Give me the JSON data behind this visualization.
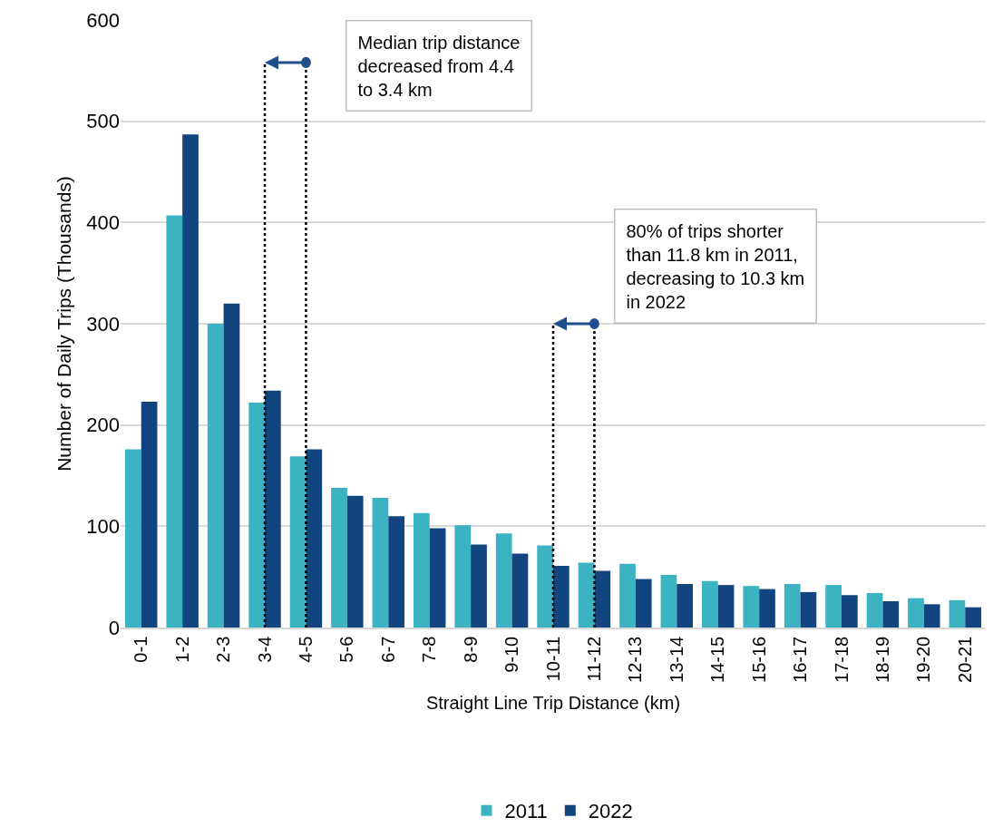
{
  "chart_data": {
    "type": "bar",
    "xlabel": "Straight Line Trip Distance (km)",
    "ylabel": "Number of Daily Trips (Thousands)",
    "categories": [
      "0-1",
      "1-2",
      "2-3",
      "3-4",
      "4-5",
      "5-6",
      "6-7",
      "7-8",
      "8-9",
      "9-10",
      "10-11",
      "11-12",
      "12-13",
      "13-14",
      "14-15",
      "15-16",
      "16-17",
      "17-18",
      "18-19",
      "19-20",
      "20-21"
    ],
    "series": [
      {
        "name": "2011",
        "color": "#3bb3c3",
        "values": [
          176,
          407,
          300,
          222,
          169,
          138,
          128,
          113,
          101,
          93,
          81,
          64,
          63,
          52,
          46,
          41,
          43,
          42,
          34,
          29,
          27
        ]
      },
      {
        "name": "2022",
        "color": "#124580",
        "values": [
          223,
          487,
          320,
          234,
          176,
          130,
          110,
          98,
          82,
          73,
          61,
          56,
          48,
          43,
          42,
          38,
          35,
          32,
          26,
          23,
          20
        ]
      }
    ],
    "ylim": [
      0,
      600
    ],
    "yticks": [
      0,
      100,
      200,
      300,
      400,
      500,
      600
    ],
    "grid": "y",
    "legend": "bottom",
    "ref_lines": [
      {
        "axis": "x",
        "value": "4-5",
        "line_style": "dotted",
        "color": "#000000"
      },
      {
        "axis": "x",
        "value": "3-4",
        "line_style": "dotted",
        "color": "#000000"
      },
      {
        "axis": "x",
        "value": "11-12",
        "line_style": "dotted",
        "color": "#000000"
      },
      {
        "axis": "x",
        "value": "10-11",
        "line_style": "dotted",
        "color": "#000000"
      }
    ],
    "annotations": [
      "Median trip distance decreased from 4.4 to 3.4 km",
      "80% of trips shorter than 11.8 km in 2011, decreasing to 10.3 km in 2022"
    ]
  }
}
